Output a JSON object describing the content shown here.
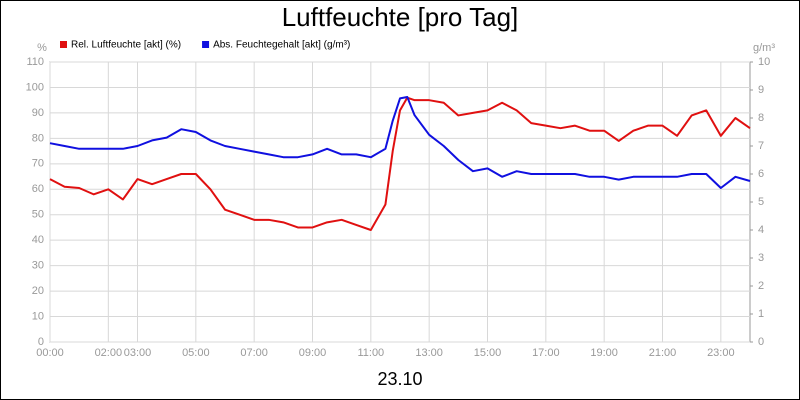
{
  "chart_data": {
    "type": "line",
    "title": "Luftfeuchte [pro Tag]",
    "xlabel": "23.10",
    "ylabel": "%",
    "y2label": "g/m³",
    "x": [
      0,
      0.5,
      1,
      1.5,
      2,
      2.5,
      3,
      3.5,
      4,
      4.5,
      5,
      5.5,
      6,
      6.5,
      7,
      7.5,
      8,
      8.5,
      9,
      9.5,
      10,
      10.5,
      11,
      11.5,
      11.75,
      12,
      12.25,
      12.5,
      13,
      13.5,
      14,
      14.5,
      15,
      15.5,
      16,
      16.5,
      17,
      17.5,
      18,
      18.5,
      19,
      19.5,
      20,
      20.5,
      21,
      21.5,
      22,
      22.5,
      23,
      23.5,
      24
    ],
    "series": [
      {
        "name": "Rel. Luftfeuchte [akt] (%)",
        "color": "#e01010",
        "values": [
          64,
          61,
          60.5,
          58,
          60,
          56,
          64,
          62,
          64,
          66,
          66,
          60,
          52,
          50,
          48,
          48,
          47,
          45,
          45,
          47,
          48,
          46,
          44,
          54,
          75,
          91,
          96,
          95,
          95,
          94,
          89,
          90,
          91,
          94,
          91,
          86,
          85,
          84,
          85,
          83,
          83,
          79,
          83,
          85,
          85,
          81,
          89,
          91,
          81,
          88,
          84
        ]
      },
      {
        "name": "Abs. Feuchtegehalt [akt] (g/m³)",
        "color": "#1010e0",
        "axis": "y2",
        "values": [
          7.1,
          7.0,
          6.9,
          6.9,
          6.9,
          6.9,
          7.0,
          7.2,
          7.3,
          7.6,
          7.5,
          7.2,
          7.0,
          6.9,
          6.8,
          6.7,
          6.6,
          6.6,
          6.7,
          6.9,
          6.7,
          6.7,
          6.6,
          6.9,
          7.9,
          8.7,
          8.75,
          8.1,
          7.4,
          7.0,
          6.5,
          6.1,
          6.2,
          5.9,
          6.1,
          6.0,
          6.0,
          6.0,
          6.0,
          5.9,
          5.9,
          5.8,
          5.9,
          5.9,
          5.9,
          5.9,
          6.0,
          6.0,
          5.5,
          5.9,
          5.75
        ]
      }
    ],
    "xlim": [
      0,
      24
    ],
    "xticks": [
      {
        "value": 0,
        "label": "00:00"
      },
      {
        "value": 2,
        "label": "02:00"
      },
      {
        "value": 3,
        "label": "03:00"
      },
      {
        "value": 5,
        "label": "05:00"
      },
      {
        "value": 7,
        "label": "07:00"
      },
      {
        "value": 9,
        "label": "09:00"
      },
      {
        "value": 11,
        "label": "11:00"
      },
      {
        "value": 13,
        "label": "13:00"
      },
      {
        "value": 15,
        "label": "15:00"
      },
      {
        "value": 17,
        "label": "17:00"
      },
      {
        "value": 19,
        "label": "19:00"
      },
      {
        "value": 21,
        "label": "21:00"
      },
      {
        "value": 23,
        "label": "23:00"
      }
    ],
    "ylim": [
      0,
      110
    ],
    "yticks": [
      0,
      10,
      20,
      30,
      40,
      50,
      60,
      70,
      80,
      90,
      100,
      110
    ],
    "y2lim": [
      0,
      10
    ],
    "y2ticks": [
      0,
      1,
      2,
      3,
      4,
      5,
      6,
      7,
      8,
      9,
      10
    ],
    "grid": true
  }
}
